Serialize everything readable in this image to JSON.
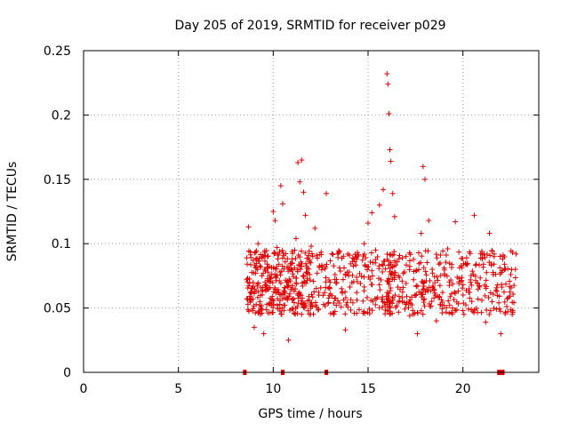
{
  "chart_data": {
    "type": "scatter",
    "title": "Day 205 of 2019, SRMTID for receiver p029",
    "xlabel": "GPS time / hours",
    "ylabel": "SRMTID / TECUs",
    "xlim": [
      0,
      24
    ],
    "ylim": [
      0,
      0.25
    ],
    "x_ticks": [
      0,
      5,
      10,
      15,
      20
    ],
    "x_tick_labels": [
      "0",
      "5",
      "10",
      "15",
      "20"
    ],
    "y_ticks": [
      0,
      0.05,
      0.1,
      0.15,
      0.2,
      0.25
    ],
    "y_tick_labels": [
      "0",
      "0.05",
      "0.1",
      "0.15",
      "0.2",
      "0.25"
    ],
    "grid": true,
    "marker": "plus",
    "series_color": "#e00000",
    "series": [
      {
        "name": "SRMTID",
        "x_range": [
          8.5,
          22.9
        ],
        "points": [
          [
            8.6,
            0.072
          ],
          [
            8.7,
            0.113
          ],
          [
            8.8,
            0.062
          ],
          [
            8.9,
            0.048
          ],
          [
            9.0,
            0.035
          ],
          [
            9.1,
            0.081
          ],
          [
            9.2,
            0.1
          ],
          [
            9.3,
            0.055
          ],
          [
            9.4,
            0.046
          ],
          [
            9.5,
            0.03
          ],
          [
            9.6,
            0.068
          ],
          [
            9.7,
            0.09
          ],
          [
            9.8,
            0.075
          ],
          [
            9.9,
            0.052
          ],
          [
            10.0,
            0.125
          ],
          [
            10.1,
            0.118
          ],
          [
            10.2,
            0.097
          ],
          [
            10.3,
            0.084
          ],
          [
            10.4,
            0.145
          ],
          [
            10.5,
            0.131
          ],
          [
            10.6,
            0.066
          ],
          [
            10.7,
            0.058
          ],
          [
            10.8,
            0.025
          ],
          [
            10.9,
            0.071
          ],
          [
            11.0,
            0.088
          ],
          [
            11.1,
            0.063
          ],
          [
            11.2,
            0.104
          ],
          [
            11.3,
            0.163
          ],
          [
            11.4,
            0.148
          ],
          [
            11.5,
            0.165
          ],
          [
            11.6,
            0.14
          ],
          [
            11.7,
            0.122
          ],
          [
            11.8,
            0.073
          ],
          [
            11.9,
            0.056
          ],
          [
            12.0,
            0.098
          ],
          [
            12.2,
            0.112
          ],
          [
            12.4,
            0.06
          ],
          [
            12.6,
            0.082
          ],
          [
            12.8,
            0.139
          ],
          [
            13.0,
            0.07
          ],
          [
            13.2,
            0.045
          ],
          [
            13.4,
            0.092
          ],
          [
            13.6,
            0.065
          ],
          [
            13.8,
            0.033
          ],
          [
            14.0,
            0.078
          ],
          [
            14.2,
            0.054
          ],
          [
            14.4,
            0.088
          ],
          [
            14.6,
            0.069
          ],
          [
            14.8,
            0.1
          ],
          [
            15.0,
            0.116
          ],
          [
            15.2,
            0.124
          ],
          [
            15.4,
            0.095
          ],
          [
            15.6,
            0.13
          ],
          [
            15.8,
            0.142
          ],
          [
            16.0,
            0.232
          ],
          [
            16.05,
            0.224
          ],
          [
            16.1,
            0.201
          ],
          [
            16.15,
            0.173
          ],
          [
            16.2,
            0.164
          ],
          [
            16.3,
            0.139
          ],
          [
            16.4,
            0.121
          ],
          [
            16.6,
            0.075
          ],
          [
            16.8,
            0.058
          ],
          [
            17.0,
            0.09
          ],
          [
            17.2,
            0.044
          ],
          [
            17.4,
            0.072
          ],
          [
            17.6,
            0.03
          ],
          [
            17.8,
            0.108
          ],
          [
            17.9,
            0.16
          ],
          [
            18.0,
            0.15
          ],
          [
            18.2,
            0.118
          ],
          [
            18.4,
            0.066
          ],
          [
            18.6,
            0.04
          ],
          [
            18.8,
            0.085
          ],
          [
            19.0,
            0.052
          ],
          [
            19.2,
            0.096
          ],
          [
            19.4,
            0.061
          ],
          [
            19.6,
            0.117
          ],
          [
            19.8,
            0.073
          ],
          [
            20.0,
            0.048
          ],
          [
            20.2,
            0.089
          ],
          [
            20.4,
            0.07
          ],
          [
            20.6,
            0.122
          ],
          [
            20.8,
            0.057
          ],
          [
            21.0,
            0.094
          ],
          [
            21.2,
            0.039
          ],
          [
            21.4,
            0.108
          ],
          [
            21.6,
            0.076
          ],
          [
            21.8,
            0.063
          ],
          [
            22.0,
            0.03
          ],
          [
            22.2,
            0.084
          ],
          [
            22.4,
            0.058
          ],
          [
            22.6,
            0.045
          ],
          [
            22.8,
            0.092
          ]
        ],
        "zero_markers": [
          8.5,
          10.5,
          12.8,
          21.9,
          22.0,
          22.1
        ]
      }
    ]
  }
}
